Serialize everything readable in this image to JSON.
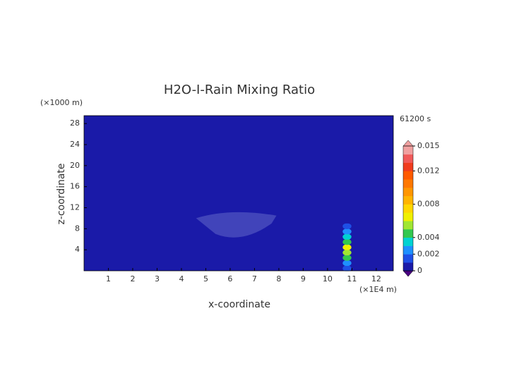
{
  "chart_data": {
    "type": "heatmap",
    "title": "H2O-I-Rain Mixing Ratio",
    "xlabel": "x-coordinate",
    "ylabel": "z-coordinate",
    "xunit": "(×1E4 m)",
    "yunit": "(×1000 m)",
    "time_label": "61200 s",
    "xlim": [
      0,
      12.7
    ],
    "ylim": [
      0,
      29.5
    ],
    "xticks": [
      1,
      2,
      3,
      4,
      5,
      6,
      7,
      8,
      9,
      10,
      11,
      12
    ],
    "yticks": [
      4,
      8,
      12,
      16,
      20,
      24,
      28
    ],
    "cells": {
      "x": [
        10.8,
        10.8,
        10.8,
        10.8,
        10.8,
        10.8,
        10.8,
        10.8,
        10.8
      ],
      "y": [
        0.5,
        1.5,
        2.5,
        3.5,
        4.5,
        5.5,
        6.5,
        7.5,
        8.5
      ],
      "values": [
        0.0015,
        0.0025,
        0.004,
        0.0055,
        0.0062,
        0.0045,
        0.003,
        0.002,
        0.0012
      ]
    },
    "clim": [
      0,
      0.015
    ],
    "cticks": [
      0,
      0.002,
      0.004,
      0.008,
      0.012,
      0.015
    ],
    "colors": [
      "#1a1aa8",
      "#1e50e6",
      "#1e90ff",
      "#00d2d2",
      "#32c850",
      "#a0e632",
      "#f0f000",
      "#ffd700",
      "#ffb400",
      "#ff9600",
      "#ff7800",
      "#ff5a00",
      "#f03c1e",
      "#f05a5a",
      "#f0a0a0"
    ]
  }
}
